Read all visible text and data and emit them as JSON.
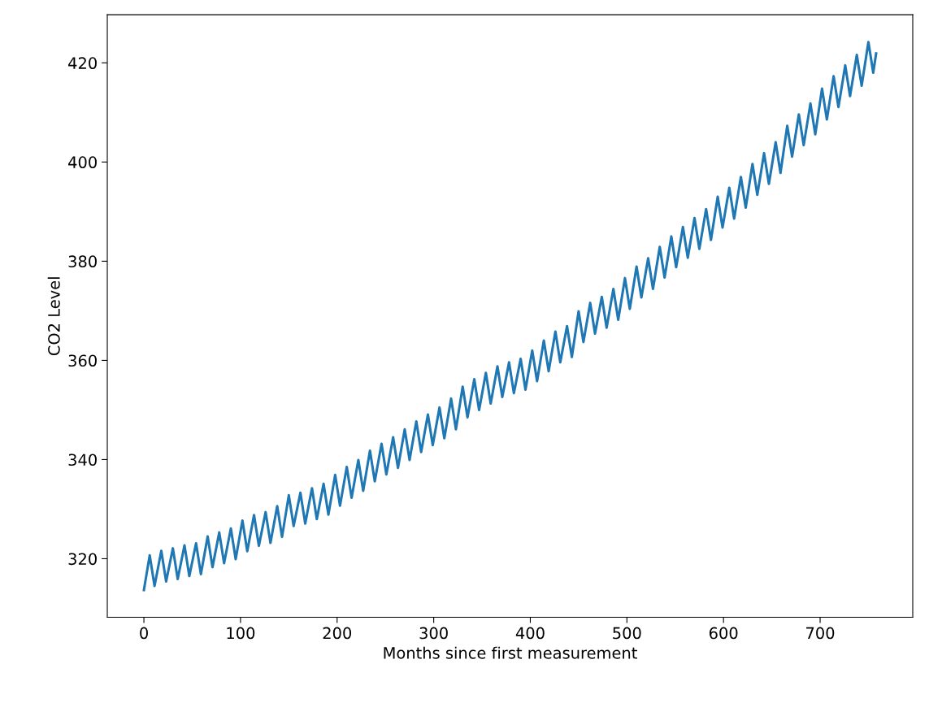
{
  "chart_data": {
    "type": "line",
    "xlabel": "Months since first measurement",
    "ylabel": "CO2 Level",
    "x": [
      0,
      6,
      11,
      18,
      23,
      30,
      35,
      42,
      47,
      54,
      59,
      66,
      71,
      78,
      83,
      90,
      95,
      102,
      107,
      114,
      119,
      126,
      131,
      138,
      143,
      150,
      155,
      162,
      167,
      174,
      179,
      186,
      191,
      198,
      203,
      210,
      215,
      222,
      227,
      234,
      239,
      246,
      251,
      258,
      263,
      270,
      275,
      282,
      287,
      294,
      299,
      306,
      311,
      318,
      323,
      330,
      335,
      342,
      347,
      354,
      359,
      366,
      371,
      378,
      383,
      390,
      395,
      402,
      407,
      414,
      419,
      426,
      431,
      438,
      443,
      450,
      455,
      462,
      467,
      474,
      479,
      486,
      491,
      498,
      503,
      510,
      515,
      522,
      527,
      534,
      539,
      546,
      551,
      558,
      563,
      570,
      575,
      582,
      587,
      594,
      599,
      606,
      611,
      618,
      623,
      630,
      635,
      642,
      647,
      654,
      659,
      666,
      671,
      678,
      683,
      690,
      695,
      702,
      707,
      714,
      719,
      726,
      731,
      738,
      743,
      750,
      755,
      758
    ],
    "series": [
      {
        "color": "#1f77b4",
        "values": [
          313.7,
          320.7,
          314.5,
          321.6,
          315.4,
          322.1,
          315.9,
          322.7,
          316.5,
          323.1,
          316.9,
          324.5,
          318.3,
          325.3,
          319.1,
          326.1,
          319.9,
          327.7,
          321.5,
          328.8,
          322.6,
          329.4,
          323.2,
          330.6,
          324.4,
          332.8,
          326.6,
          333.3,
          327.1,
          334.2,
          328.0,
          335.1,
          328.9,
          336.9,
          330.7,
          338.5,
          332.3,
          339.9,
          333.7,
          341.8,
          335.6,
          343.2,
          337.0,
          344.5,
          338.3,
          346.1,
          339.9,
          347.7,
          341.5,
          349.1,
          342.9,
          350.5,
          344.3,
          352.3,
          346.1,
          354.7,
          348.5,
          356.2,
          350.0,
          357.5,
          351.3,
          358.8,
          352.6,
          359.6,
          353.4,
          360.3,
          354.1,
          362.0,
          355.8,
          364.0,
          357.8,
          365.8,
          359.6,
          366.9,
          360.7,
          369.9,
          363.7,
          371.6,
          365.4,
          372.8,
          366.6,
          374.4,
          368.2,
          376.6,
          370.4,
          378.9,
          372.7,
          380.6,
          374.4,
          382.9,
          376.7,
          385.0,
          378.8,
          386.9,
          380.7,
          388.7,
          382.5,
          390.5,
          384.3,
          393.0,
          386.8,
          394.8,
          388.6,
          397.0,
          390.8,
          399.6,
          393.4,
          401.8,
          395.6,
          404.0,
          397.8,
          407.3,
          401.1,
          409.6,
          403.4,
          411.8,
          405.6,
          414.8,
          408.6,
          417.3,
          411.1,
          419.5,
          413.3,
          421.6,
          415.4,
          424.2,
          418.0,
          421.9
        ]
      }
    ],
    "xlim": [
      -37.9,
      795.9
    ],
    "xticks": [
      0,
      100,
      200,
      300,
      400,
      500,
      600,
      700
    ],
    "ylim": [
      308.2,
      429.7
    ],
    "yticks": [
      320,
      340,
      360,
      380,
      400,
      420
    ]
  }
}
